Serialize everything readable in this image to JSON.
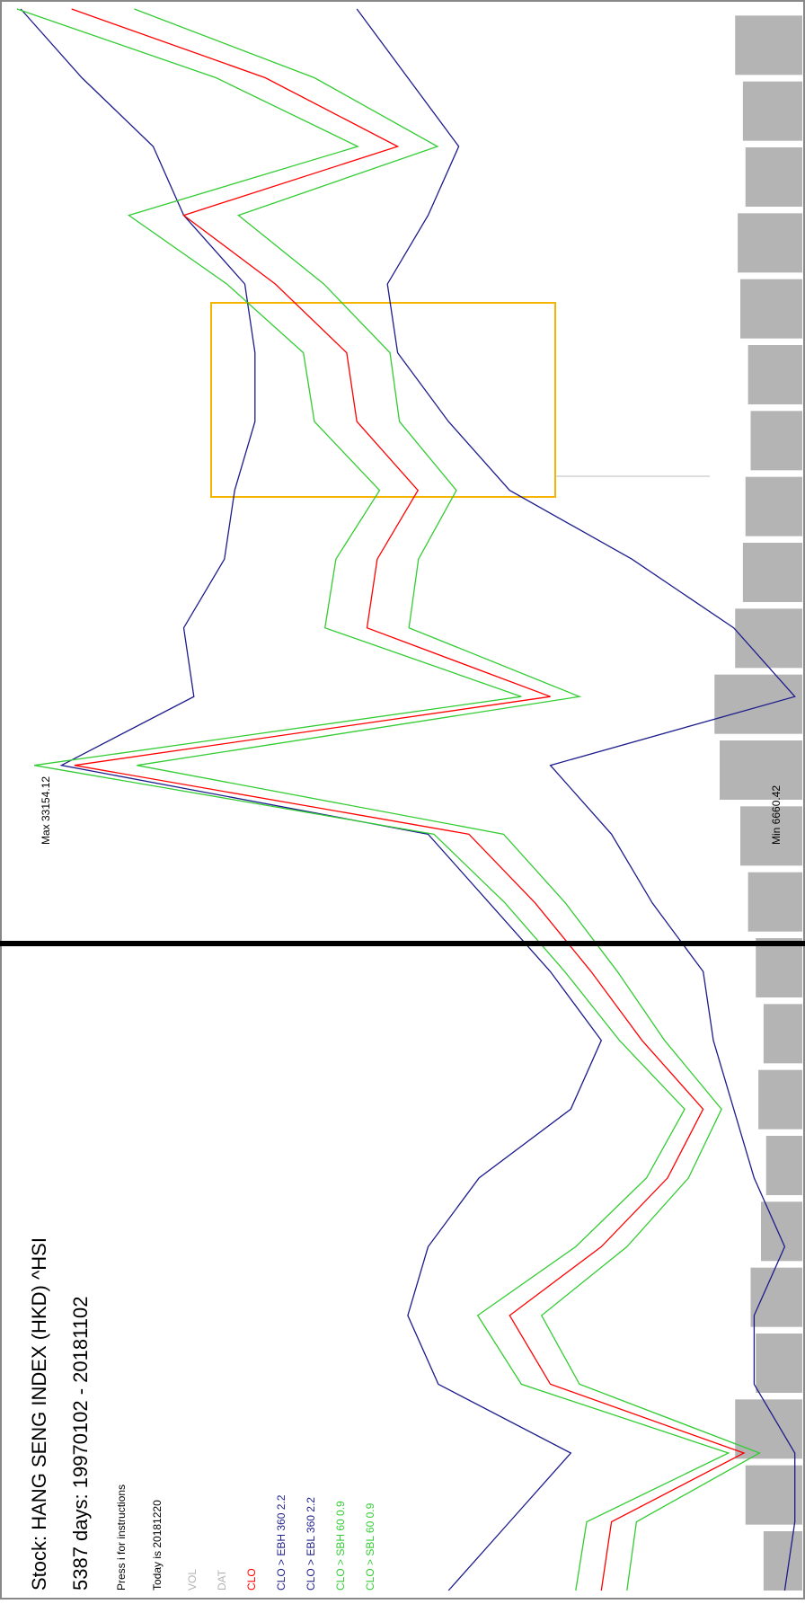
{
  "chart_data": {
    "type": "line",
    "title": "Stock: HANG SENG INDEX (HKD) ^HSI",
    "subtitle": "5387 days: 19970102 - 20181102",
    "instructions": "Press i for instructions",
    "today": "Today is 20181220",
    "max_label": "Max 33154.12",
    "min_label": "Min 6660.42",
    "ylim": [
      6660.42,
      33154.12
    ],
    "volume": {
      "name": "VOL",
      "color": "#b4b4b4",
      "ylim": [
        0,
        4000000000
      ],
      "values": [
        1500000000,
        2200000000,
        2600000000,
        1800000000,
        2000000000,
        1600000000,
        1400000000,
        1700000000,
        1500000000,
        1800000000,
        2100000000,
        2400000000,
        3200000000,
        3400000000,
        2600000000,
        2300000000,
        2200000000,
        2000000000,
        2100000000,
        2400000000,
        2500000000,
        2200000000,
        2300000000,
        2600000000
      ]
    },
    "dat_legend": {
      "name": "DAT",
      "color": "#b4b4b4"
    },
    "series": [
      {
        "name": "CLO",
        "color": "#ff0000",
        "values": [
          12681,
          12327,
          7722,
          14452,
          15869,
          12681,
          10379,
          9140,
          11265,
          13035,
          14983,
          17286,
          31000,
          14452,
          20828,
          20474,
          19057,
          21182,
          21536,
          24016,
          27203,
          19765,
          24370,
          31100
        ]
      },
      {
        "name": "CLO > EBH 360 2.2",
        "color": "#1c1c8c",
        "values": [
          17994,
          15869,
          13744,
          18348,
          19411,
          18703,
          16932,
          13744,
          12681,
          14452,
          16577,
          18703,
          31454,
          26849,
          27203,
          25787,
          25432,
          24724,
          24724,
          25078,
          27203,
          28266,
          30745,
          32871
        ]
      },
      {
        "name": "CLO > EBL 360 2.2",
        "color": "#1c1c8c",
        "values": [
          6305,
          5951,
          5951,
          7368,
          7368,
          6305,
          7368,
          8076,
          8785,
          9139,
          10910,
          12327,
          14452,
          5951,
          8076,
          11619,
          15869,
          17994,
          19765,
          20119,
          18703,
          17640,
          19411,
          21182
        ]
      },
      {
        "name": "CLO > SBH 60 0.9",
        "color": "#33cc33",
        "values": [
          13570,
          13190,
          8260,
          15460,
          16980,
          13570,
          11110,
          9780,
          12050,
          13950,
          16030,
          18500,
          32400,
          15460,
          22290,
          21910,
          20390,
          22660,
          23040,
          25700,
          29110,
          21150,
          26080,
          33000
        ]
      },
      {
        "name": "CLO > SBL 60 0.9",
        "color": "#33cc33",
        "values": [
          11790,
          11460,
          7180,
          13440,
          14760,
          11790,
          9650,
          8500,
          10480,
          12120,
          13930,
          16080,
          28830,
          13440,
          19370,
          19040,
          17720,
          19700,
          20030,
          22330,
          25300,
          18380,
          22660,
          28920
        ]
      }
    ]
  }
}
